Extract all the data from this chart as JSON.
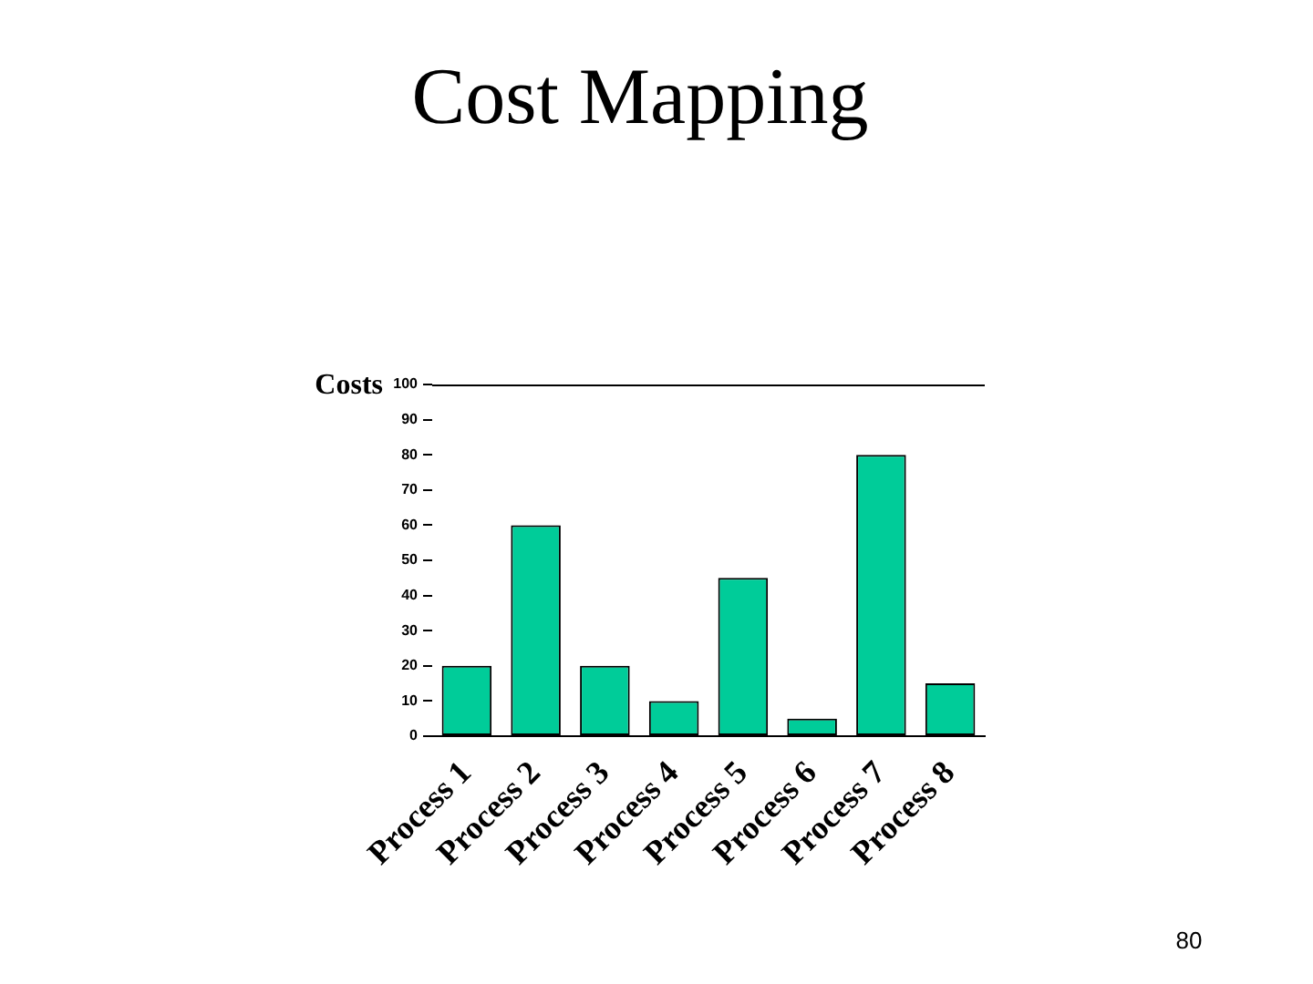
{
  "chart_data": {
    "type": "bar",
    "title": "Cost Mapping",
    "ylabel": "Costs",
    "categories": [
      "Process 1",
      "Process 2",
      "Process 3",
      "Process 4",
      "Process 5",
      "Process 6",
      "Process 7",
      "Process 8"
    ],
    "values": [
      20,
      60,
      20,
      10,
      45,
      5,
      80,
      15
    ],
    "color": "#00cc99",
    "ylim": [
      0,
      100
    ],
    "yticks": [
      0,
      10,
      20,
      30,
      40,
      50,
      60,
      70,
      80,
      90,
      100
    ],
    "ref_lines": [
      {
        "axis": "y",
        "value": 100,
        "color": "#000000"
      }
    ],
    "annotations": [
      "80"
    ]
  }
}
